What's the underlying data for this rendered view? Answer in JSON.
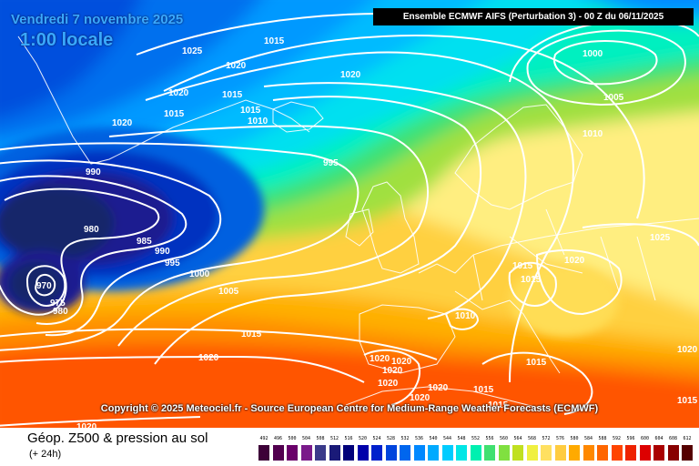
{
  "header": {
    "date": "Vendredi 7 novembre 2025",
    "time": "1:00 locale",
    "model": "Ensemble ECMWF AIFS  (Perturbation 3)  -  00 Z du 06/11/2025"
  },
  "copyright": "Copyright © 2025 Meteociel.fr - Source European Centre for Medium-Range Weather Forecasts (ECMWF)",
  "footer": {
    "title": "Géop. Z500 & pression au sol",
    "subtitle": "(+ 24h)"
  },
  "scale": {
    "labels": [
      "492",
      "496",
      "500",
      "504",
      "508",
      "512",
      "516",
      "520",
      "524",
      "528",
      "532",
      "536",
      "540",
      "544",
      "548",
      "552",
      "556",
      "560",
      "564",
      "568",
      "572",
      "576",
      "580",
      "584",
      "588",
      "592",
      "596",
      "600",
      "604",
      "608",
      "612"
    ],
    "colors": [
      "#3d0038",
      "#52004f",
      "#6a006a",
      "#7a1a8a",
      "#3a3a8a",
      "#1a1a78",
      "#00007a",
      "#0000aa",
      "#0020cc",
      "#0044dd",
      "#0066ee",
      "#0088ff",
      "#00aaff",
      "#00ccff",
      "#00e6e6",
      "#00f0b0",
      "#40e070",
      "#80e040",
      "#c0e020",
      "#f0f040",
      "#ffe060",
      "#ffcc40",
      "#ffaa00",
      "#ff8800",
      "#ff6600",
      "#ff4400",
      "#ee2200",
      "#dd0000",
      "#aa0000",
      "#880000",
      "#550000"
    ]
  },
  "isobar_labels": [
    "1025",
    "1015",
    "1020",
    "1020",
    "1015",
    "1015",
    "1020",
    "1015",
    "1010",
    "1020",
    "990",
    "995",
    "980",
    "985",
    "990",
    "995",
    "1000",
    "1005",
    "970",
    "975",
    "980",
    "1015",
    "1020",
    "1000",
    "1005",
    "1010",
    "1025",
    "1015",
    "1020",
    "1015",
    "1010",
    "1020",
    "1020",
    "1020",
    "1020",
    "1020",
    "1020",
    "1015",
    "1015",
    "1015",
    "1020",
    "1020",
    "1015"
  ],
  "colors": {
    "isobar": "#ffffff",
    "coast": "#ffffff",
    "low_core": "#13276b",
    "warm_edge": "#ff3300"
  }
}
